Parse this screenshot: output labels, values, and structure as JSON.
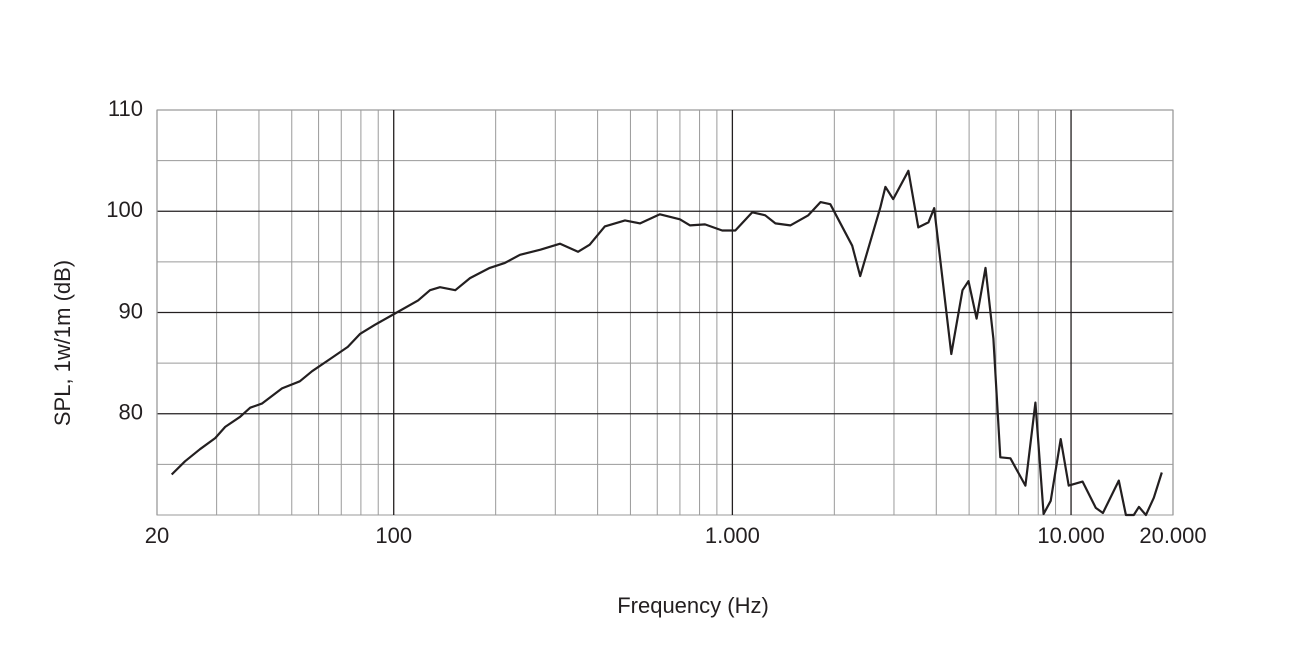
{
  "chart_data": {
    "type": "line",
    "xscale": "log",
    "x_label": "Frequency (Hz)",
    "y_label": "SPL, 1w/1m (dB)",
    "xlim": [
      20,
      20000
    ],
    "ylim": [
      70,
      110
    ],
    "xticks": [
      20,
      100,
      {
        "value": 1000,
        "label": "1.000"
      },
      {
        "value": 10000,
        "label": "10.000"
      },
      {
        "value": 20000,
        "label": "20.000"
      }
    ],
    "x_minor_ticks": [
      30,
      40,
      50,
      60,
      70,
      80,
      90,
      200,
      300,
      400,
      500,
      600,
      700,
      800,
      900,
      2000,
      3000,
      4000,
      5000,
      6000,
      7000,
      8000,
      9000
    ],
    "yticks": [
      80,
      90,
      100,
      110
    ],
    "y_minor_ticks": [
      75,
      85,
      95,
      105
    ],
    "grid": true,
    "x": [
      22.1,
      24.2,
      26.8,
      29.7,
      31.8,
      35.2,
      37.7,
      40.8,
      46.8,
      52.8,
      57.4,
      64.8,
      73.2,
      79.6,
      88.1,
      100.9,
      118,
      128,
      137,
      152,
      168,
      192,
      213,
      236,
      271,
      310,
      350,
      379,
      420,
      482,
      534,
      611,
      700,
      750,
      830,
      933,
      1020,
      1145,
      1250,
      1340,
      1483,
      1675,
      1820,
      1946,
      2259,
      2385,
      2735,
      2830,
      2985,
      3310,
      3540,
      3790,
      3945,
      4430,
      4780,
      4980,
      5260,
      5590,
      5900,
      6180,
      6620,
      7330,
      7850,
      8300,
      8710,
      9320,
      9840,
      10820,
      11830,
      12420,
      13840,
      14520,
      15320,
      15860,
      16630,
      17550,
      18530
    ],
    "series": [
      {
        "color": "#231f20",
        "values": [
          74.0,
          75.3,
          76.5,
          77.6,
          78.7,
          79.7,
          80.6,
          81.0,
          82.5,
          83.2,
          84.2,
          85.4,
          86.6,
          87.9,
          88.8,
          89.9,
          91.2,
          92.2,
          92.5,
          92.2,
          93.4,
          94.4,
          94.9,
          95.7,
          96.2,
          96.8,
          96.0,
          96.7,
          98.5,
          99.1,
          98.8,
          99.7,
          99.2,
          98.6,
          98.7,
          98.1,
          98.1,
          99.9,
          99.6,
          98.8,
          98.6,
          99.6,
          100.9,
          100.7,
          96.6,
          93.6,
          100.4,
          102.4,
          101.2,
          104.0,
          98.4,
          98.9,
          100.3,
          85.9,
          92.2,
          93.1,
          89.4,
          94.4,
          87.4,
          75.7,
          75.6,
          72.9,
          81.1,
          70.1,
          71.4,
          77.5,
          72.9,
          73.3,
          70.7,
          70.2,
          73.4,
          70,
          70,
          70.8,
          70,
          71.7,
          74.2
        ]
      }
    ]
  }
}
